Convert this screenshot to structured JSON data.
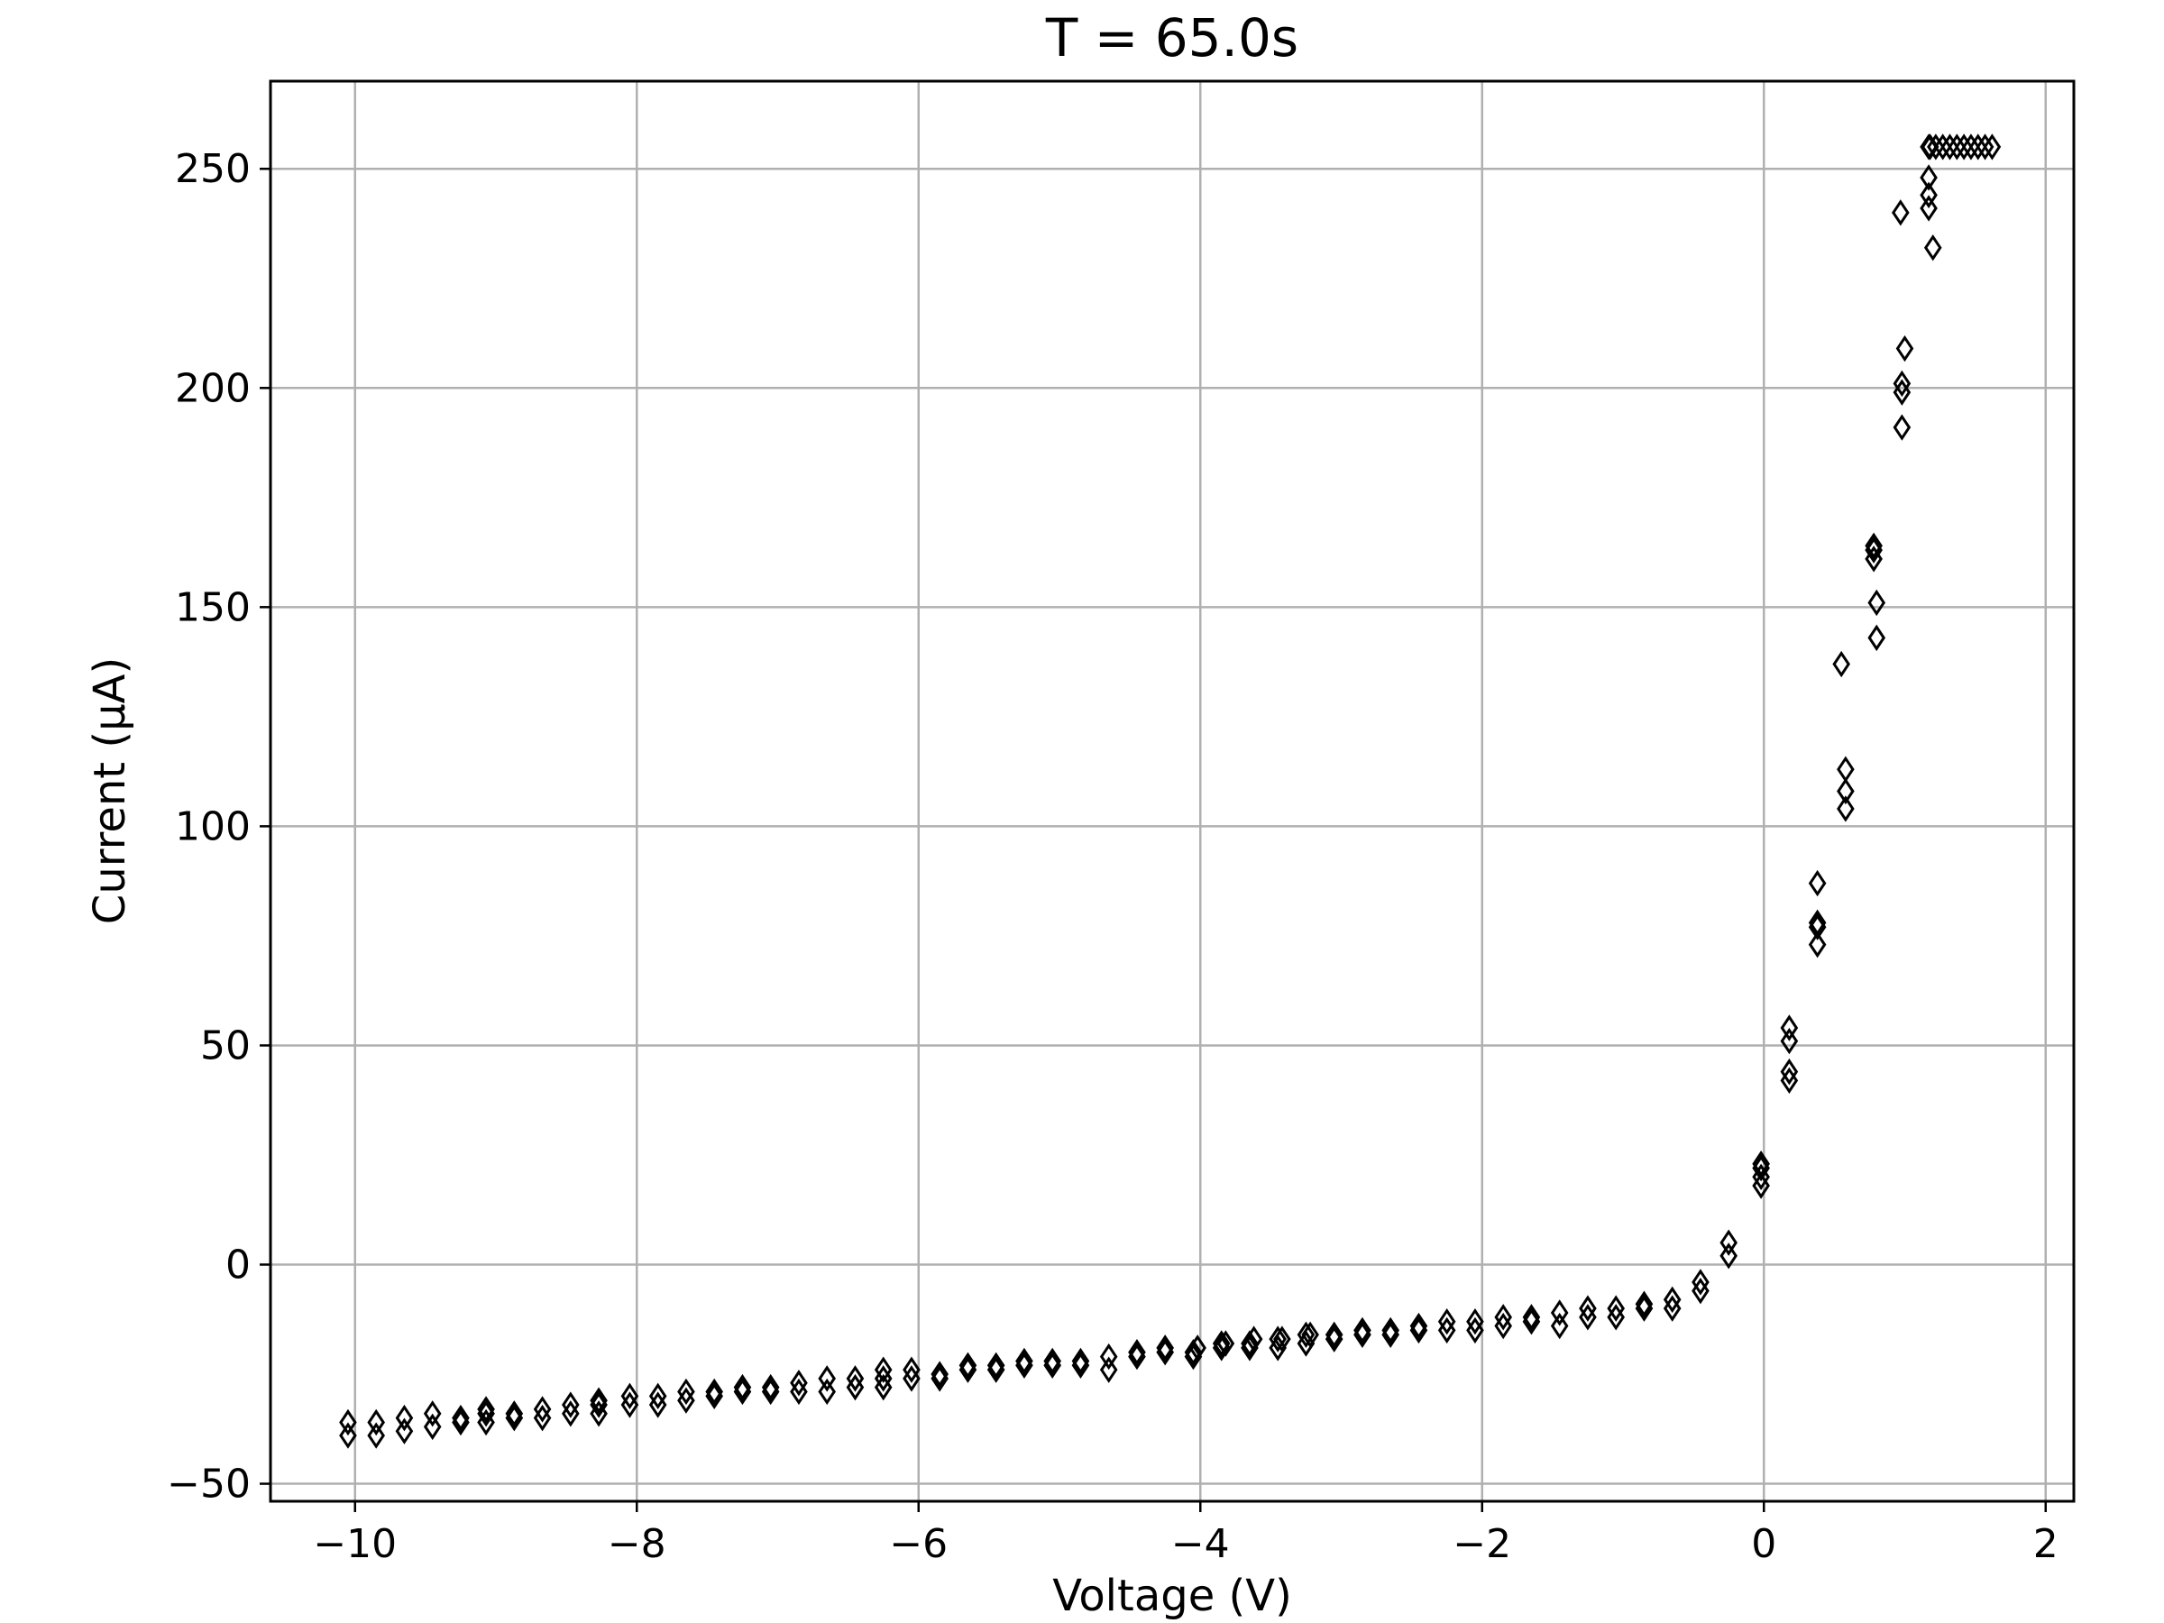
{
  "chart_data": {
    "type": "scatter",
    "title": "T = 65.0s",
    "xlabel": "Voltage (V)",
    "ylabel": "Current (μA)",
    "xlim": [
      -10.6,
      2.2
    ],
    "ylim": [
      -54,
      270
    ],
    "xticks": [
      -10,
      -8,
      -6,
      -4,
      -2,
      0,
      2
    ],
    "xtick_labels": [
      "−10",
      "−8",
      "−6",
      "−4",
      "−2",
      "0",
      "2"
    ],
    "yticks": [
      -50,
      0,
      50,
      100,
      150,
      200,
      250
    ],
    "ytick_labels": [
      "−50",
      "0",
      "50",
      "100",
      "150",
      "200",
      "250"
    ],
    "grid": true,
    "marker": "thin-diamond",
    "marker_color": "#000000",
    "grid_color": "#b0b0b0",
    "series": [
      {
        "x": [
          -10.05,
          -10.05,
          -9.85,
          -9.85,
          -9.65,
          -9.65,
          -9.45,
          -9.45,
          -9.25,
          -9.25,
          -9.07,
          -9.07,
          -9.07,
          -8.87,
          -8.87,
          -8.67,
          -8.67,
          -8.47,
          -8.47,
          -8.27,
          -8.27,
          -8.27,
          -8.05,
          -8.05,
          -7.85,
          -7.85,
          -7.65,
          -7.65,
          -7.45,
          -7.45,
          -7.25,
          -7.25,
          -7.05,
          -7.05,
          -6.85,
          -6.85,
          -6.65,
          -6.65,
          -6.45,
          -6.45,
          -6.25,
          -6.25,
          -6.25,
          -6.05,
          -6.05,
          -5.85,
          -5.85,
          -5.65,
          -5.65,
          -5.45,
          -5.45,
          -5.25,
          -5.25,
          -5.05,
          -5.05,
          -4.85,
          -4.85,
          -4.65,
          -4.65,
          -4.45,
          -4.45,
          -4.25,
          -4.25,
          -4.05,
          -4.05,
          -4.02,
          -3.85,
          -3.85,
          -3.82,
          -3.65,
          -3.65,
          -3.62,
          -3.45,
          -3.45,
          -3.42,
          -3.25,
          -3.25,
          -3.22,
          -3.05,
          -3.05,
          -2.85,
          -2.85,
          -2.65,
          -2.65,
          -2.45,
          -2.45,
          -2.25,
          -2.25,
          -2.05,
          -2.05,
          -1.85,
          -1.85,
          -1.65,
          -1.65,
          -1.45,
          -1.45,
          -1.25,
          -1.25,
          -1.05,
          -1.05,
          -0.85,
          -0.85,
          -0.65,
          -0.65,
          -0.45,
          -0.45,
          -0.25,
          -0.25,
          -0.02,
          -0.02,
          -0.02,
          -0.02,
          0.18,
          0.18,
          0.18,
          0.18,
          0.38,
          0.38,
          0.38,
          0.38,
          0.55,
          0.58,
          0.58,
          0.58,
          0.78,
          0.78,
          0.78,
          0.8,
          0.8,
          0.97,
          0.98,
          0.98,
          0.98,
          1.0,
          1.17,
          1.17,
          1.17,
          1.17,
          1.2,
          1.18,
          1.22,
          1.27,
          1.32,
          1.37,
          1.42,
          1.47,
          1.52,
          1.57,
          1.62
        ],
        "y": [
          -39,
          -36,
          -39,
          -36,
          -38,
          -35,
          -37,
          -34,
          -36,
          -35,
          -36,
          -34,
          -33,
          -35,
          -34,
          -35,
          -33,
          -34,
          -32,
          -34,
          -32,
          -31,
          -32,
          -30,
          -32,
          -30,
          -31,
          -29,
          -30,
          -29,
          -29,
          -28,
          -29,
          -28,
          -29,
          -27,
          -29,
          -26,
          -28,
          -26,
          -28,
          -26,
          -24,
          -26,
          -24,
          -26,
          -25,
          -24,
          -23,
          -24,
          -23,
          -23,
          -22,
          -23,
          -22,
          -23,
          -22,
          -24,
          -21,
          -21,
          -20,
          -20,
          -19,
          -21,
          -20,
          -19,
          -19,
          -18,
          -18,
          -19,
          -18,
          -17,
          -19,
          -17,
          -17,
          -18,
          -16,
          -16,
          -17,
          -16,
          -16,
          -15,
          -16,
          -15,
          -15,
          -14,
          -15,
          -13,
          -15,
          -13,
          -14,
          -12,
          -13,
          -12,
          -14,
          -11,
          -12,
          -10,
          -12,
          -10,
          -10,
          -9,
          -10,
          -8,
          -6,
          -4,
          2,
          5,
          18,
          20,
          22,
          23,
          42,
          44,
          51,
          54,
          73,
          77,
          78,
          87,
          137,
          104,
          108,
          113,
          161,
          163,
          164,
          143,
          151,
          240,
          191,
          199,
          201,
          209,
          241,
          244,
          248,
          255,
          232,
          255,
          255,
          255,
          255,
          255,
          255,
          255,
          255,
          255,
          255
        ]
      }
    ]
  }
}
